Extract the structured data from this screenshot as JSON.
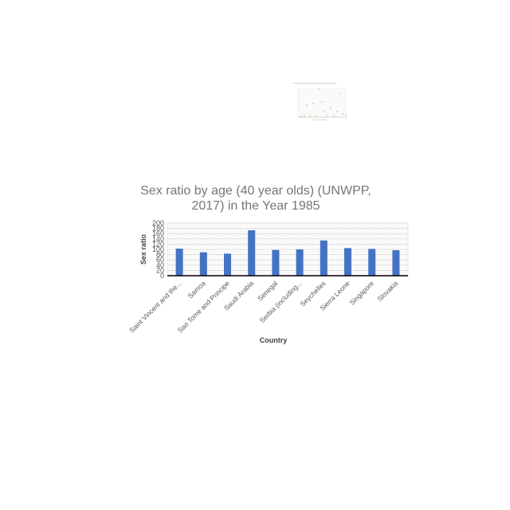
{
  "chart_data": {
    "type": "bar",
    "title_line1": "Sex ratio by age (40 year olds) (UNWPP,",
    "title_line2": "2017) in the Year 1985",
    "xlabel": "Country",
    "ylabel": "Sex ratio",
    "ylim": [
      0,
      200
    ],
    "yticks": [
      0,
      20,
      40,
      60,
      80,
      100,
      120,
      140,
      160,
      180,
      200
    ],
    "grid": true,
    "categories": [
      "Saint Vincent and the...",
      "Samoa",
      "Sao Tome and Principe",
      "Saudi Arabia",
      "Senegal",
      "Serbia (including...",
      "Seychelles",
      "Sierra Leone",
      "Singapore",
      "Slovakia"
    ],
    "values": [
      103,
      89,
      84,
      173,
      98,
      100,
      134,
      105,
      102,
      97
    ],
    "bar_color": "#4472C4"
  }
}
